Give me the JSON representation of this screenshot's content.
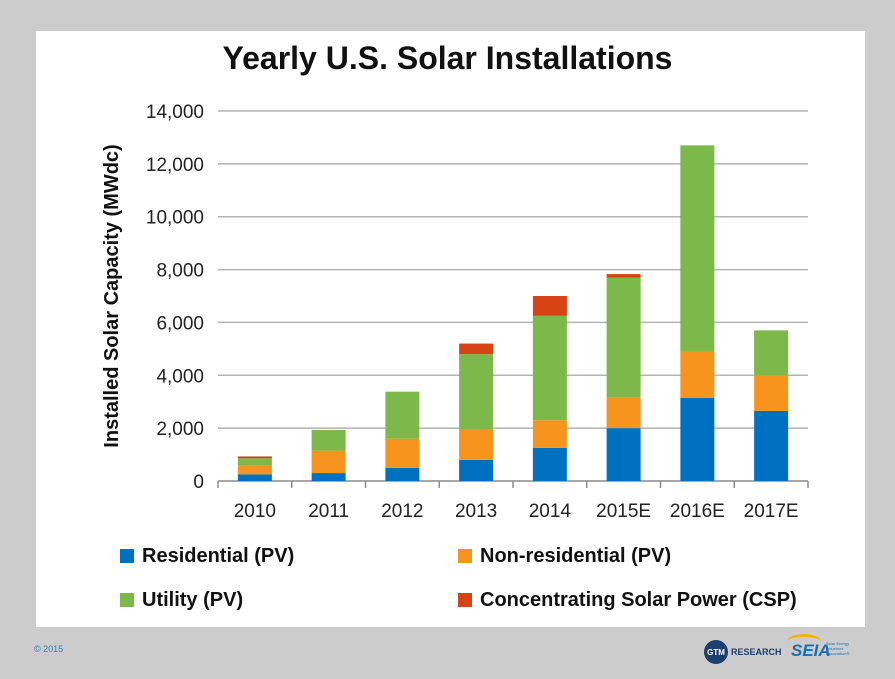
{
  "chart_data": {
    "type": "bar",
    "stacked": true,
    "title": "Yearly U.S. Solar Installations",
    "ylabel": "Installed Solar Capacity (MWdc)",
    "xlabel": "",
    "ylim": [
      0,
      14000
    ],
    "yticks": [
      0,
      2000,
      4000,
      6000,
      8000,
      10000,
      12000,
      14000
    ],
    "ytick_labels": [
      "0",
      "2,000",
      "4,000",
      "6,000",
      "8,000",
      "10,000",
      "12,000",
      "14,000"
    ],
    "grid": true,
    "legend_position": "bottom",
    "categories": [
      "2010",
      "2011",
      "2012",
      "2013",
      "2014",
      "2015E",
      "2016E",
      "2017E"
    ],
    "series": [
      {
        "name": "Residential (PV)",
        "color": "#0070c0",
        "values": [
          250,
          300,
          500,
          800,
          1250,
          2000,
          3150,
          2650
        ]
      },
      {
        "name": "Non-residential (PV)",
        "color": "#f7941d",
        "values": [
          330,
          850,
          1100,
          1150,
          1050,
          1150,
          1750,
          1350
        ]
      },
      {
        "name": "Utility (PV)",
        "color": "#7db84a",
        "values": [
          280,
          780,
          1780,
          2850,
          3950,
          4550,
          7800,
          1700
        ]
      },
      {
        "name": "Concentrating Solar Power (CSP)",
        "color": "#d84315",
        "values": [
          70,
          0,
          0,
          400,
          750,
          130,
          0,
          0
        ]
      }
    ]
  },
  "footer": {
    "copyright": "© 2015",
    "gtm_badge": "GTM",
    "gtm_word": "RESEARCH",
    "seia_word": "SEIA",
    "seia_tagline": "Solar Energy Industries Association®"
  }
}
